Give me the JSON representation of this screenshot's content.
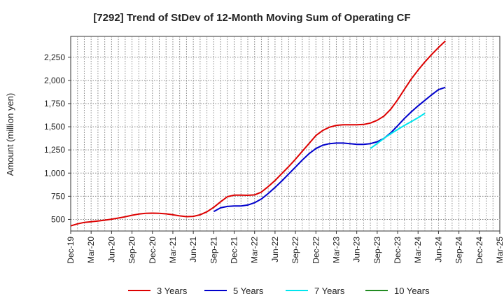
{
  "chart_data": {
    "type": "line",
    "title": "[7292]  Trend of StDev of 12-Month Moving Sum of Operating CF",
    "ylabel": "Amount (million yen)",
    "xlabel": "",
    "ylim": [
      375,
      2475
    ],
    "yticks": [
      500,
      750,
      1000,
      1250,
      1500,
      1750,
      2000,
      2250
    ],
    "ytick_labels": [
      "500",
      "750",
      "1,000",
      "1,250",
      "1,500",
      "1,750",
      "2,000",
      "2,250"
    ],
    "x_months": [
      "Dec-19",
      "Jan-20",
      "Feb-20",
      "Mar-20",
      "Apr-20",
      "May-20",
      "Jun-20",
      "Jul-20",
      "Aug-20",
      "Sep-20",
      "Oct-20",
      "Nov-20",
      "Dec-20",
      "Jan-21",
      "Feb-21",
      "Mar-21",
      "Apr-21",
      "May-21",
      "Jun-21",
      "Jul-21",
      "Aug-21",
      "Sep-21",
      "Oct-21",
      "Nov-21",
      "Dec-21",
      "Jan-22",
      "Feb-22",
      "Mar-22",
      "Apr-22",
      "May-22",
      "Jun-22",
      "Jul-22",
      "Aug-22",
      "Sep-22",
      "Oct-22",
      "Nov-22",
      "Dec-22",
      "Jan-23",
      "Feb-23",
      "Mar-23",
      "Apr-23",
      "May-23",
      "Jun-23",
      "Jul-23",
      "Aug-23",
      "Sep-23",
      "Oct-23",
      "Nov-23",
      "Dec-23",
      "Jan-24",
      "Feb-24",
      "Mar-24",
      "Apr-24",
      "May-24",
      "Jun-24",
      "Jul-24",
      "Aug-24",
      "Sep-24",
      "Oct-24",
      "Nov-24",
      "Dec-24",
      "Jan-25",
      "Feb-25",
      "Mar-25"
    ],
    "x_tick_labels": [
      "Dec-19",
      "Mar-20",
      "Jun-20",
      "Sep-20",
      "Dec-20",
      "Mar-21",
      "Jun-21",
      "Sep-21",
      "Dec-21",
      "Mar-22",
      "Jun-22",
      "Sep-22",
      "Dec-22",
      "Mar-23",
      "Jun-23",
      "Sep-23",
      "Dec-23",
      "Mar-24",
      "Jun-24",
      "Sep-24",
      "Dec-24",
      "Mar-25"
    ],
    "grid": true,
    "legend_position": "bottom",
    "series": [
      {
        "name": "3 Years",
        "color": "#dd0000",
        "start": "Dec-19",
        "values": [
          430,
          452,
          468,
          475,
          483,
          492,
          503,
          515,
          528,
          545,
          558,
          565,
          568,
          566,
          560,
          550,
          538,
          530,
          533,
          550,
          582,
          630,
          690,
          745,
          762,
          762,
          760,
          765,
          795,
          855,
          920,
          995,
          1070,
          1150,
          1235,
          1320,
          1405,
          1460,
          1495,
          1515,
          1522,
          1522,
          1522,
          1525,
          1540,
          1570,
          1615,
          1690,
          1790,
          1905,
          2015,
          2110,
          2200,
          2280,
          2355,
          2425
        ]
      },
      {
        "name": "5 Years",
        "color": "#0000cc",
        "start": "Sep-21",
        "values": [
          585,
          625,
          640,
          645,
          645,
          655,
          680,
          720,
          780,
          845,
          915,
          990,
          1065,
          1140,
          1210,
          1265,
          1300,
          1318,
          1324,
          1324,
          1318,
          1310,
          1310,
          1318,
          1338,
          1375,
          1435,
          1510,
          1590,
          1660,
          1725,
          1785,
          1845,
          1900,
          1925
        ]
      },
      {
        "name": "7 Years",
        "color": "#00e5ee",
        "start": "Aug-23",
        "values": [
          1265,
          1320,
          1375,
          1425,
          1470,
          1515,
          1555,
          1598,
          1645
        ]
      },
      {
        "name": "10 Years",
        "color": "#228b22",
        "start": "",
        "values": []
      }
    ]
  }
}
